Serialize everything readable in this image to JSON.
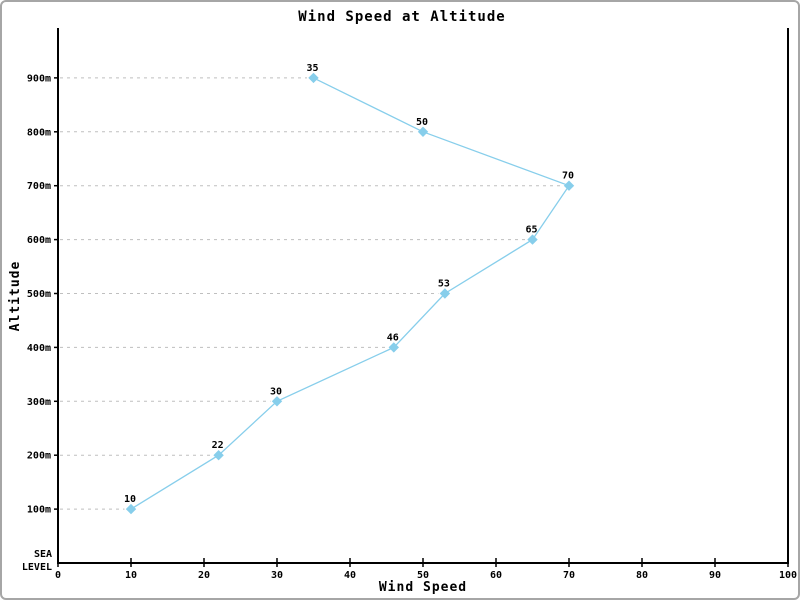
{
  "window": {
    "background_color": "#ffffff",
    "border_color": "#a6a6a6"
  },
  "chart_data": {
    "type": "line",
    "title": "Wind Speed at Altitude",
    "xlabel": "Wind Speed",
    "ylabel": "Altitude",
    "xlim": [
      0,
      100
    ],
    "x_ticks": [
      0,
      10,
      20,
      30,
      40,
      50,
      60,
      70,
      80,
      90,
      100
    ],
    "baseline_label_lines": [
      "SEA",
      "LEVEL"
    ],
    "grid": "dashed-leader-lines-from-y-axis-to-point",
    "gridline_color": "#bfbfbf",
    "axis_color": "#000000",
    "legend": "none",
    "marker": "diamond",
    "series": [
      {
        "name": "wind-speed-profile",
        "color": "#87CEEB",
        "points": [
          {
            "altitude_m": 100,
            "altitude_label": "100m",
            "value": 10,
            "value_label": "10"
          },
          {
            "altitude_m": 200,
            "altitude_label": "200m",
            "value": 22,
            "value_label": "22"
          },
          {
            "altitude_m": 300,
            "altitude_label": "300m",
            "value": 30,
            "value_label": "30"
          },
          {
            "altitude_m": 400,
            "altitude_label": "400m",
            "value": 46,
            "value_label": "46"
          },
          {
            "altitude_m": 500,
            "altitude_label": "500m",
            "value": 53,
            "value_label": "53"
          },
          {
            "altitude_m": 600,
            "altitude_label": "600m",
            "value": 65,
            "value_label": "65"
          },
          {
            "altitude_m": 700,
            "altitude_label": "700m",
            "value": 70,
            "value_label": "70"
          },
          {
            "altitude_m": 800,
            "altitude_label": "800m",
            "value": 50,
            "value_label": "50"
          },
          {
            "altitude_m": 900,
            "altitude_label": "900m",
            "value": 35,
            "value_label": "35"
          }
        ]
      }
    ]
  }
}
